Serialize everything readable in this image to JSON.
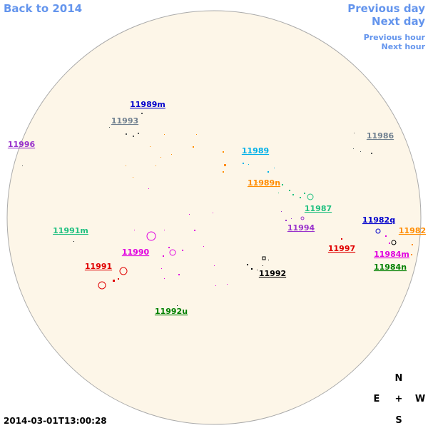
{
  "nav": {
    "back": "Back to 2014",
    "previous_day": "Previous day",
    "next_day": "Next day",
    "previous_hour": "Previous hour",
    "next_hour": "Next hour"
  },
  "timestamp": "2014-03-01T13:00:28",
  "compass": {
    "north": "N",
    "east": "E",
    "center": "+",
    "west": "W",
    "south": "S"
  },
  "groups": [
    {
      "label": "11989m",
      "color": "#0000cc"
    },
    {
      "label": "11993",
      "color": "#708090"
    },
    {
      "label": "11996",
      "color": "#9932cc"
    },
    {
      "label": "11986",
      "color": "#708090"
    },
    {
      "label": "11989",
      "color": "#00b0e8"
    },
    {
      "label": "11989n",
      "color": "#ff8c00"
    },
    {
      "label": "11987",
      "color": "#20c080"
    },
    {
      "label": "11994",
      "color": "#9932cc"
    },
    {
      "label": "11982q",
      "color": "#0000cc"
    },
    {
      "label": "11982",
      "color": "#ff8c00"
    },
    {
      "label": "11991m",
      "color": "#20c080"
    },
    {
      "label": "11990",
      "color": "#e000e0"
    },
    {
      "label": "11997",
      "color": "#e00000"
    },
    {
      "label": "11984m",
      "color": "#e000e0"
    },
    {
      "label": "11984n",
      "color": "#008000"
    },
    {
      "label": "11991",
      "color": "#e00000"
    },
    {
      "label": "11992",
      "color": "#000000"
    },
    {
      "label": "11992u",
      "color": "#008000"
    }
  ]
}
